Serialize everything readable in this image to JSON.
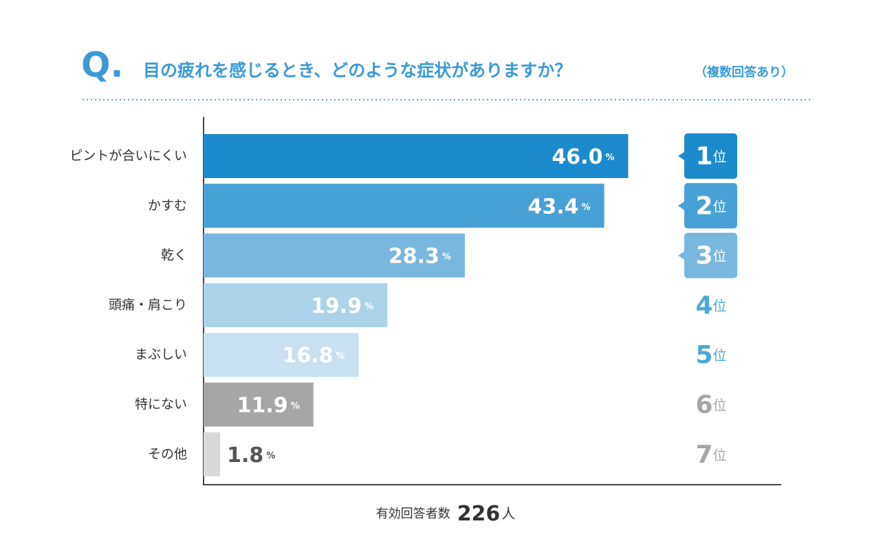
{
  "chart_data": {
    "type": "bar",
    "title_prefix": "Q.",
    "title": "目の疲れを感じるとき、どのような症状がありますか？",
    "subtitle": "（複数回答あり）",
    "categories": [
      "ピントが合いにくい",
      "かすむ",
      "乾く",
      "頭痛・肩こり",
      "まぶしい",
      "特にない",
      "その他"
    ],
    "values": [
      46.0,
      43.4,
      28.3,
      19.9,
      16.8,
      11.9,
      1.8
    ],
    "value_labels": [
      "46.0",
      "43.4",
      "28.3",
      "19.9",
      "16.8",
      "11.9",
      "1.8"
    ],
    "value_unit": "%",
    "colors": [
      "#1b8bcd",
      "#48a1d5",
      "#79b7de",
      "#abd3e9",
      "#c8e0ef",
      "#a6a6a6",
      "#d9d9d9"
    ],
    "xlim": [
      0,
      62.5
    ],
    "ranks": [
      "1",
      "2",
      "3",
      "4",
      "5",
      "6",
      "7"
    ],
    "rank_suffix": "位",
    "rank_text_colors": [
      "#ffffff",
      "#ffffff",
      "#ffffff",
      "#4aa8d8",
      "#4aa8d8",
      "#a6a6a6",
      "#a6a6a6"
    ],
    "footer_label": "有効回答者数",
    "footer_value": "226",
    "footer_unit": "人"
  }
}
